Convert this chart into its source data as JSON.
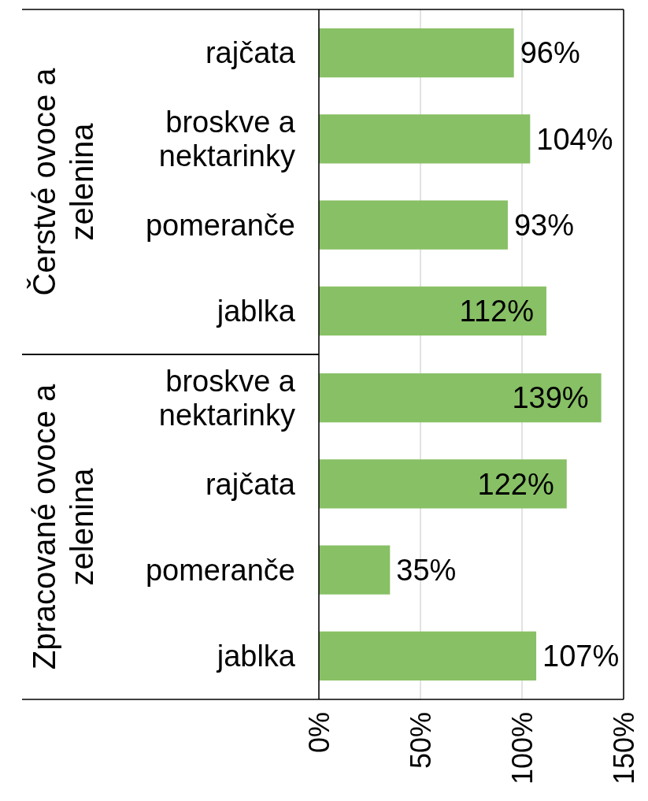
{
  "chart_data": [
    {
      "type": "bar",
      "orientation": "horizontal",
      "title": "Čerstvé ovoce a zelenina",
      "categories": [
        "rajčata",
        "broskve a nektarinky",
        "pomeranče",
        "jablka"
      ],
      "values": [
        96,
        104,
        93,
        112
      ],
      "value_labels": [
        "96%",
        "104%",
        "93%",
        "112%"
      ],
      "color": "#88c065",
      "xlim": [
        0,
        150
      ],
      "xticks": [
        {
          "value": 0,
          "label": null
        },
        {
          "value": 50,
          "label": null
        },
        {
          "value": 100,
          "label": null
        },
        {
          "value": 150,
          "label": null
        }
      ],
      "grid": "x",
      "tick_labels": "y"
    },
    {
      "type": "bar",
      "orientation": "horizontal",
      "title": "Zpracované ovoce a zelenina",
      "categories": [
        "broskve a nektarinky",
        "rajčata",
        "pomeranče",
        "jablka"
      ],
      "values": [
        139,
        122,
        35,
        107
      ],
      "value_labels": [
        "139%",
        "122%",
        "35%",
        "107%"
      ],
      "color": "#88c065",
      "xlim": [
        0,
        150
      ],
      "xticks": [
        {
          "value": 0,
          "label": "0%"
        },
        {
          "value": 50,
          "label": "50%"
        },
        {
          "value": 100,
          "label": "100%"
        },
        {
          "value": 150,
          "label": "150%"
        }
      ],
      "grid": "x"
    }
  ]
}
